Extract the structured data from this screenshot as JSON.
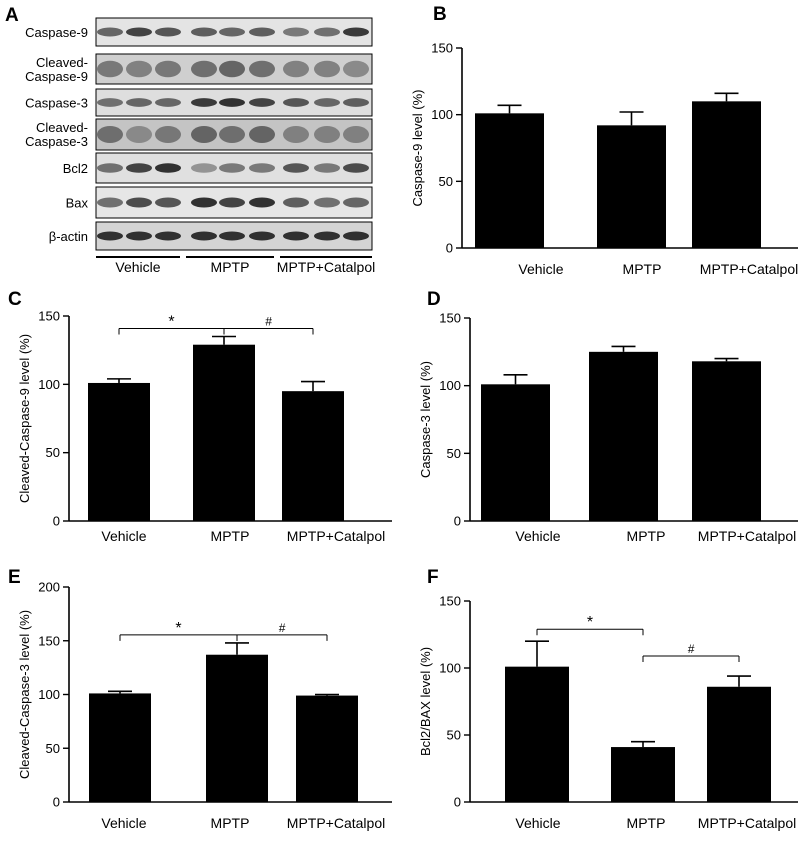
{
  "blot": {
    "panel_letter": "A",
    "rows": [
      {
        "label_lines": [
          "Caspase-9"
        ]
      },
      {
        "label_lines": [
          "Cleaved-",
          "Caspase-9"
        ]
      },
      {
        "label_lines": [
          "Caspase-3"
        ]
      },
      {
        "label_lines": [
          "Cleaved-",
          "Caspase-3"
        ]
      },
      {
        "label_lines": [
          "Bcl2"
        ]
      },
      {
        "label_lines": [
          "Bax"
        ]
      },
      {
        "label_lines": [
          "β-actin"
        ]
      }
    ],
    "groups": [
      "Vehicle",
      "MPTP",
      "MPTP+Catalpol"
    ],
    "lanes_per_group": 3
  },
  "chart_data": [
    {
      "panel": "B",
      "type": "bar",
      "categories": [
        "Vehicle",
        "MPTP",
        "MPTP+Catalpol"
      ],
      "values": [
        101,
        92,
        110
      ],
      "errors": [
        6,
        10,
        6
      ],
      "ylabel": "Caspase-9 level (%)",
      "ylim": [
        0,
        150
      ],
      "yticks": [
        0,
        50,
        100,
        150
      ],
      "annotations": []
    },
    {
      "panel": "C",
      "type": "bar",
      "categories": [
        "Vehicle",
        "MPTP",
        "MPTP+Catalpol"
      ],
      "values": [
        101,
        129,
        95
      ],
      "errors": [
        3,
        6,
        7
      ],
      "ylabel": "Cleaved-Caspase-9 level (%)",
      "ylim": [
        0,
        150
      ],
      "yticks": [
        0,
        50,
        100,
        150
      ],
      "annotations": [
        {
          "from": 0,
          "to": 1,
          "symbol": "*"
        },
        {
          "from": 1,
          "to": 2,
          "symbol": "#"
        }
      ]
    },
    {
      "panel": "D",
      "type": "bar",
      "categories": [
        "Vehicle",
        "MPTP",
        "MPTP+Catalpol"
      ],
      "values": [
        101,
        125,
        118
      ],
      "errors": [
        7,
        4,
        2
      ],
      "ylabel": "Caspase-3 level (%)",
      "ylim": [
        0,
        150
      ],
      "yticks": [
        0,
        50,
        100,
        150
      ],
      "annotations": []
    },
    {
      "panel": "E",
      "type": "bar",
      "categories": [
        "Vehicle",
        "MPTP",
        "MPTP+Catalpol"
      ],
      "values": [
        101,
        137,
        99
      ],
      "errors": [
        2,
        11,
        1
      ],
      "ylabel": "Cleaved-Caspase-3 level (%)",
      "ylim": [
        0,
        200
      ],
      "yticks": [
        0,
        50,
        100,
        150,
        200
      ],
      "annotations": [
        {
          "from": 0,
          "to": 1,
          "symbol": "*"
        },
        {
          "from": 1,
          "to": 2,
          "symbol": "#"
        }
      ]
    },
    {
      "panel": "F",
      "type": "bar",
      "categories": [
        "Vehicle",
        "MPTP",
        "MPTP+Catalpol"
      ],
      "values": [
        101,
        41,
        86
      ],
      "errors": [
        19,
        4,
        8
      ],
      "ylabel": "Bcl2/BAX level (%)",
      "ylim": [
        0,
        150
      ],
      "yticks": [
        0,
        50,
        100,
        150
      ],
      "annotations": [
        {
          "from": 0,
          "to": 1,
          "symbol": "*"
        },
        {
          "from": 1,
          "to": 2,
          "symbol": "#"
        }
      ]
    }
  ]
}
